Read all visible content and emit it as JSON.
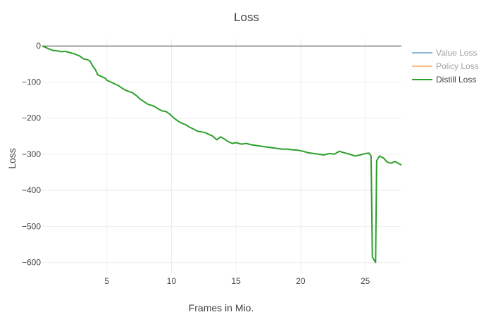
{
  "chart_data": {
    "type": "line",
    "title": "Loss",
    "xlabel": "Frames in Mio.",
    "ylabel": "Loss",
    "xlim": [
      0,
      27.8
    ],
    "ylim": [
      -630,
      20
    ],
    "x_ticks": [
      5,
      10,
      15,
      20,
      25
    ],
    "y_ticks": [
      0,
      -100,
      -200,
      -300,
      -400,
      -500,
      -600
    ],
    "y_tick_labels": [
      "0",
      "−100",
      "−200",
      "−300",
      "−400",
      "−500",
      "−600"
    ],
    "grid": true,
    "legend_position": "top-right",
    "series": [
      {
        "name": "Value Loss",
        "color": "#1f77b4",
        "visible": false,
        "x": [],
        "y": []
      },
      {
        "name": "Policy Loss",
        "color": "#ff7f0e",
        "visible": false,
        "x": [],
        "y": []
      },
      {
        "name": "Distill Loss",
        "color": "#2ca02c",
        "visible": true,
        "x": [
          0,
          0.5,
          0.8,
          1.2,
          1.5,
          1.8,
          2.1,
          2.5,
          2.9,
          3.2,
          3.5,
          3.7,
          3.9,
          4.1,
          4.3,
          4.6,
          4.9,
          5.0,
          5.3,
          5.6,
          5.9,
          6.1,
          6.4,
          6.7,
          7.0,
          7.3,
          7.6,
          7.9,
          8.2,
          8.5,
          8.7,
          9.0,
          9.3,
          9.6,
          9.9,
          10.2,
          10.5,
          10.8,
          11.1,
          11.4,
          11.7,
          12.0,
          12.3,
          12.6,
          12.9,
          13.2,
          13.5,
          13.8,
          14.1,
          14.4,
          14.7,
          15.0,
          15.4,
          15.8,
          16.2,
          16.6,
          17.0,
          17.4,
          17.8,
          18.2,
          18.6,
          19.0,
          19.4,
          19.8,
          20.2,
          20.6,
          21.0,
          21.4,
          21.8,
          22.2,
          22.6,
          23.0,
          23.4,
          23.8,
          24.2,
          24.6,
          25.0,
          25.3,
          25.45,
          25.55,
          25.8,
          25.88,
          26.1,
          26.4,
          26.7,
          27.0,
          27.3,
          27.6,
          27.8
        ],
        "y": [
          0,
          -8,
          -12,
          -14,
          -16,
          -15,
          -18,
          -22,
          -28,
          -36,
          -38,
          -42,
          -55,
          -65,
          -80,
          -85,
          -90,
          -95,
          -100,
          -105,
          -110,
          -115,
          -122,
          -126,
          -130,
          -138,
          -148,
          -155,
          -162,
          -165,
          -168,
          -175,
          -180,
          -182,
          -190,
          -200,
          -208,
          -214,
          -218,
          -225,
          -230,
          -236,
          -238,
          -240,
          -245,
          -250,
          -260,
          -252,
          -258,
          -265,
          -270,
          -268,
          -272,
          -270,
          -274,
          -276,
          -278,
          -280,
          -282,
          -284,
          -286,
          -286,
          -288,
          -289,
          -292,
          -296,
          -298,
          -300,
          -302,
          -298,
          -300,
          -292,
          -296,
          -300,
          -305,
          -302,
          -298,
          -297,
          -305,
          -585,
          -600,
          -318,
          -305,
          -310,
          -322,
          -325,
          -320,
          -326,
          -330
        ]
      }
    ]
  }
}
